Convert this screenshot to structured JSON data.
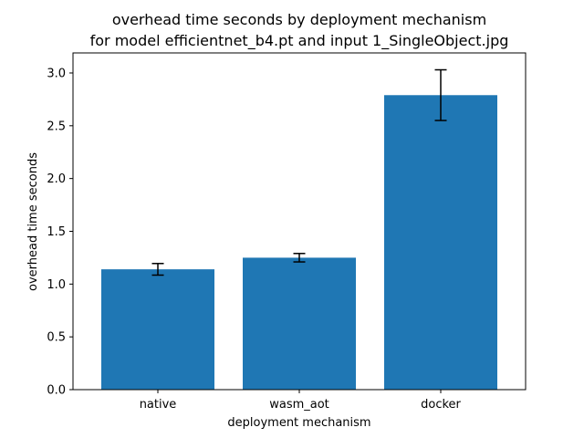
{
  "chart_data": {
    "type": "bar",
    "title_lines": [
      "overhead time seconds by deployment mechanism",
      "for model efficientnet_b4.pt and input 1_SingleObject.jpg"
    ],
    "xlabel": "deployment mechanism",
    "ylabel": "overhead time seconds",
    "categories": [
      "native",
      "wasm_aot",
      "docker"
    ],
    "values": [
      1.14,
      1.25,
      2.79
    ],
    "error": [
      0.055,
      0.04,
      0.24
    ],
    "ylim": [
      0,
      3.19
    ],
    "yticks": [
      0.0,
      0.5,
      1.0,
      1.5,
      2.0,
      2.5,
      3.0
    ],
    "ytick_labels": [
      "0.0",
      "0.5",
      "1.0",
      "1.5",
      "2.0",
      "2.5",
      "3.0"
    ],
    "grid": false,
    "legend": "none",
    "bar_color": "#1f77b4",
    "error_color": "#000000"
  }
}
